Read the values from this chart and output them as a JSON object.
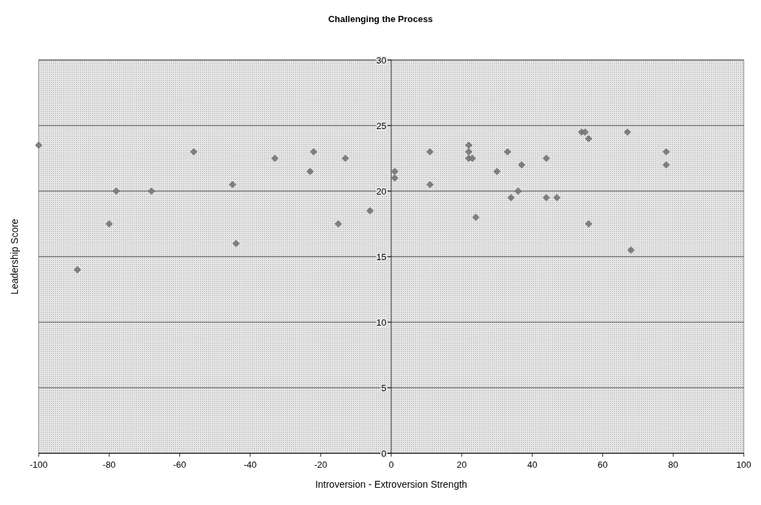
{
  "chart_data": {
    "type": "scatter",
    "title": "Challenging the Process",
    "xlabel": "Introversion - Extroversion Strength",
    "ylabel": "Leadership Score",
    "x": [
      -100,
      -89,
      -80,
      -78,
      -68,
      -56,
      -45,
      -44,
      -33,
      -23,
      -22,
      -15,
      -13,
      -6,
      1,
      1,
      11,
      11,
      22,
      22,
      22,
      23,
      24,
      30,
      33,
      34,
      36,
      37,
      44,
      44,
      47,
      54,
      55,
      56,
      56,
      67,
      68,
      78,
      78
    ],
    "series": [
      {
        "color": "#7f7f7f",
        "values": [
          23.5,
          14,
          17.5,
          20,
          20,
          23,
          20.5,
          16,
          22.5,
          21.5,
          23,
          17.5,
          22.5,
          18.5,
          21.5,
          21,
          23,
          20.5,
          23.5,
          23,
          22.5,
          22.5,
          18,
          21.5,
          23,
          19.5,
          20,
          22,
          22.5,
          19.5,
          19.5,
          24.5,
          24.5,
          24,
          17.5,
          24.5,
          15.5,
          23,
          22
        ]
      }
    ],
    "xlim": [
      -100,
      100
    ],
    "xticks": [
      -100,
      -80,
      -60,
      -40,
      -20,
      0,
      20,
      40,
      60,
      80,
      100
    ],
    "ylim": [
      0,
      30
    ],
    "yticks": [
      0,
      5,
      10,
      15,
      20,
      25,
      30
    ],
    "grid": "y",
    "marker": "diamond"
  }
}
